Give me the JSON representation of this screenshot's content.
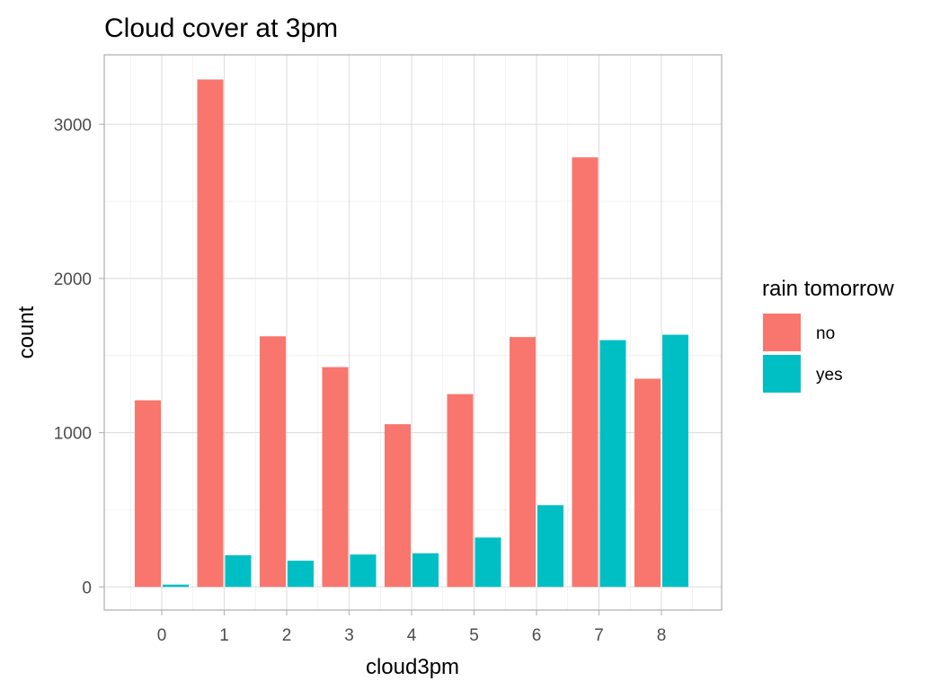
{
  "chart_data": {
    "type": "bar",
    "title": "Cloud cover at 3pm",
    "xlabel": "cloud3pm",
    "ylabel": "count",
    "categories": [
      "0",
      "1",
      "2",
      "3",
      "4",
      "5",
      "6",
      "7",
      "8"
    ],
    "series": [
      {
        "name": "no",
        "color": "#F8766D",
        "values": [
          1210,
          3290,
          1625,
          1425,
          1055,
          1250,
          1620,
          2785,
          1350
        ]
      },
      {
        "name": "yes",
        "color": "#00BFC4",
        "values": [
          15,
          205,
          170,
          210,
          218,
          320,
          530,
          1600,
          1635
        ]
      }
    ],
    "ylim": [
      -150,
      3450
    ],
    "y_ticks": [
      0,
      1000,
      2000,
      3000
    ],
    "y_tick_labels": [
      "0",
      "1000",
      "2000",
      "3000"
    ],
    "grid": true,
    "legend": {
      "title": "rain tomorrow",
      "position": "right"
    }
  }
}
